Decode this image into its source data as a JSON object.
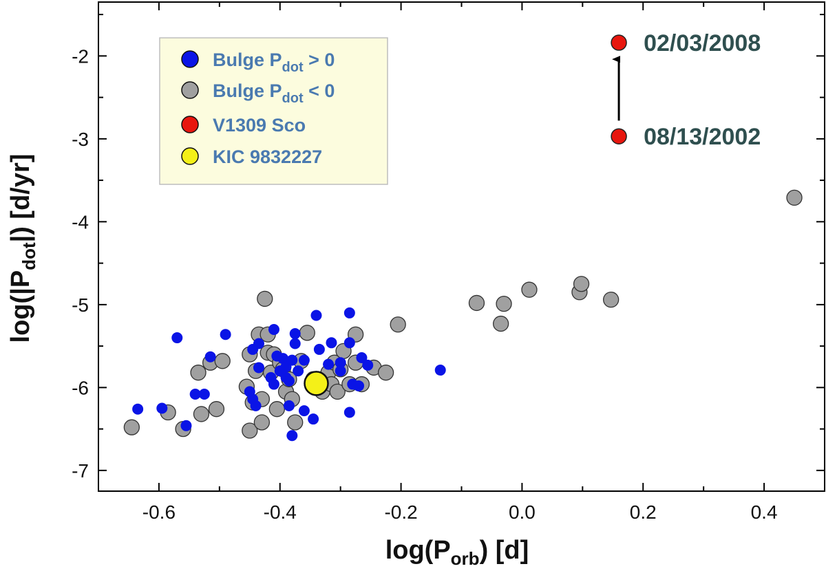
{
  "chart_data": {
    "type": "scatter",
    "xlabel": {
      "main": "log(P",
      "sub": "orb",
      "tail": ") [d]"
    },
    "ylabel": {
      "main": "log(|P",
      "sub": "dot",
      "tail": "|) [d/yr]"
    },
    "xlim": [
      -0.7,
      0.5
    ],
    "ylim": [
      -7.25,
      -1.35
    ],
    "x_ticks": [
      -0.6,
      -0.4,
      -0.2,
      0.0,
      0.2,
      0.4
    ],
    "x_tick_labels": [
      "-0.6",
      "-0.4",
      "-0.2",
      "0.0",
      "0.2",
      "0.4"
    ],
    "y_ticks": [
      -7,
      -6,
      -5,
      -4,
      -3,
      -2
    ],
    "y_tick_labels": [
      "-7",
      "-6",
      "-5",
      "-4",
      "-3",
      "-2"
    ],
    "legend": {
      "placement": "top-left",
      "entries": [
        {
          "main": "Bulge P",
          "sub": "dot",
          "tail": " > 0",
          "color": "#0a14e6"
        },
        {
          "main": "Bulge P",
          "sub": "dot",
          "tail": " < 0",
          "color": "#a0a0a0"
        },
        {
          "main": "V1309 Sco",
          "sub": "",
          "tail": "",
          "color": "#e8160e"
        },
        {
          "main": "KIC 9832227",
          "sub": "",
          "tail": "",
          "color": "#f4f018"
        }
      ]
    },
    "series": [
      {
        "name": "Bulge Pdot < 0",
        "color": "#a0a0a0",
        "points": [
          [
            -0.645,
            -6.48
          ],
          [
            -0.585,
            -6.3
          ],
          [
            -0.56,
            -6.5
          ],
          [
            -0.535,
            -5.82
          ],
          [
            -0.53,
            -6.32
          ],
          [
            -0.515,
            -5.7
          ],
          [
            -0.505,
            -6.26
          ],
          [
            -0.495,
            -5.68
          ],
          [
            -0.455,
            -5.99
          ],
          [
            -0.45,
            -5.6
          ],
          [
            -0.45,
            -6.52
          ],
          [
            -0.445,
            -6.18
          ],
          [
            -0.44,
            -5.8
          ],
          [
            -0.435,
            -5.36
          ],
          [
            -0.43,
            -6.14
          ],
          [
            -0.43,
            -6.42
          ],
          [
            -0.425,
            -4.93
          ],
          [
            -0.42,
            -5.58
          ],
          [
            -0.42,
            -5.36
          ],
          [
            -0.415,
            -5.82
          ],
          [
            -0.41,
            -5.6
          ],
          [
            -0.405,
            -6.26
          ],
          [
            -0.4,
            -5.7
          ],
          [
            -0.395,
            -5.78
          ],
          [
            -0.39,
            -6.05
          ],
          [
            -0.385,
            -5.9
          ],
          [
            -0.38,
            -6.14
          ],
          [
            -0.375,
            -6.42
          ],
          [
            -0.365,
            -5.68
          ],
          [
            -0.355,
            -5.34
          ],
          [
            -0.345,
            -5.9
          ],
          [
            -0.335,
            -5.96
          ],
          [
            -0.33,
            -6.05
          ],
          [
            -0.32,
            -5.82
          ],
          [
            -0.315,
            -5.96
          ],
          [
            -0.31,
            -5.7
          ],
          [
            -0.305,
            -6.05
          ],
          [
            -0.3,
            -5.78
          ],
          [
            -0.295,
            -5.56
          ],
          [
            -0.285,
            -5.96
          ],
          [
            -0.275,
            -5.36
          ],
          [
            -0.275,
            -5.7
          ],
          [
            -0.265,
            -5.96
          ],
          [
            -0.245,
            -5.76
          ],
          [
            -0.225,
            -5.82
          ],
          [
            -0.205,
            -5.24
          ],
          [
            -0.075,
            -4.98
          ],
          [
            -0.035,
            -5.23
          ],
          [
            -0.03,
            -4.99
          ],
          [
            0.012,
            -4.82
          ],
          [
            0.095,
            -4.85
          ],
          [
            0.098,
            -4.75
          ],
          [
            0.147,
            -4.94
          ],
          [
            0.45,
            -3.71
          ]
        ]
      },
      {
        "name": "Bulge Pdot > 0",
        "color": "#0a14e6",
        "points": [
          [
            -0.635,
            -6.26
          ],
          [
            -0.595,
            -6.25
          ],
          [
            -0.57,
            -5.4
          ],
          [
            -0.555,
            -6.46
          ],
          [
            -0.54,
            -6.08
          ],
          [
            -0.525,
            -6.08
          ],
          [
            -0.515,
            -5.63
          ],
          [
            -0.49,
            -5.36
          ],
          [
            -0.45,
            -6.05
          ],
          [
            -0.445,
            -6.14
          ],
          [
            -0.445,
            -5.54
          ],
          [
            -0.44,
            -6.22
          ],
          [
            -0.435,
            -5.47
          ],
          [
            -0.435,
            -5.76
          ],
          [
            -0.415,
            -5.88
          ],
          [
            -0.41,
            -5.96
          ],
          [
            -0.41,
            -5.3
          ],
          [
            -0.405,
            -5.62
          ],
          [
            -0.4,
            -5.8
          ],
          [
            -0.395,
            -5.65
          ],
          [
            -0.39,
            -5.75
          ],
          [
            -0.39,
            -5.88
          ],
          [
            -0.385,
            -6.22
          ],
          [
            -0.385,
            -5.92
          ],
          [
            -0.38,
            -5.67
          ],
          [
            -0.38,
            -6.58
          ],
          [
            -0.375,
            -5.47
          ],
          [
            -0.375,
            -5.35
          ],
          [
            -0.37,
            -5.8
          ],
          [
            -0.36,
            -5.67
          ],
          [
            -0.36,
            -6.28
          ],
          [
            -0.345,
            -6.38
          ],
          [
            -0.34,
            -5.13
          ],
          [
            -0.335,
            -5.54
          ],
          [
            -0.32,
            -5.72
          ],
          [
            -0.315,
            -5.46
          ],
          [
            -0.3,
            -5.8
          ],
          [
            -0.3,
            -5.7
          ],
          [
            -0.285,
            -5.1
          ],
          [
            -0.285,
            -5.46
          ],
          [
            -0.285,
            -6.3
          ],
          [
            -0.28,
            -5.96
          ],
          [
            -0.27,
            -5.98
          ],
          [
            -0.265,
            -5.64
          ],
          [
            -0.255,
            -5.73
          ],
          [
            -0.135,
            -5.79
          ]
        ]
      },
      {
        "name": "V1309 Sco",
        "color": "#e8160e",
        "points": [
          [
            0.16,
            -2.97
          ],
          [
            0.16,
            -1.84
          ]
        ]
      },
      {
        "name": "KIC 9832227",
        "color": "#f4f018",
        "points": [
          [
            -0.34,
            -5.95
          ]
        ]
      }
    ],
    "annotations": {
      "date_early": "08/13/2002",
      "date_late": "02/03/2008",
      "arrow": {
        "from": [
          0.16,
          -2.78
        ],
        "to": [
          0.16,
          -2.04
        ]
      }
    }
  }
}
